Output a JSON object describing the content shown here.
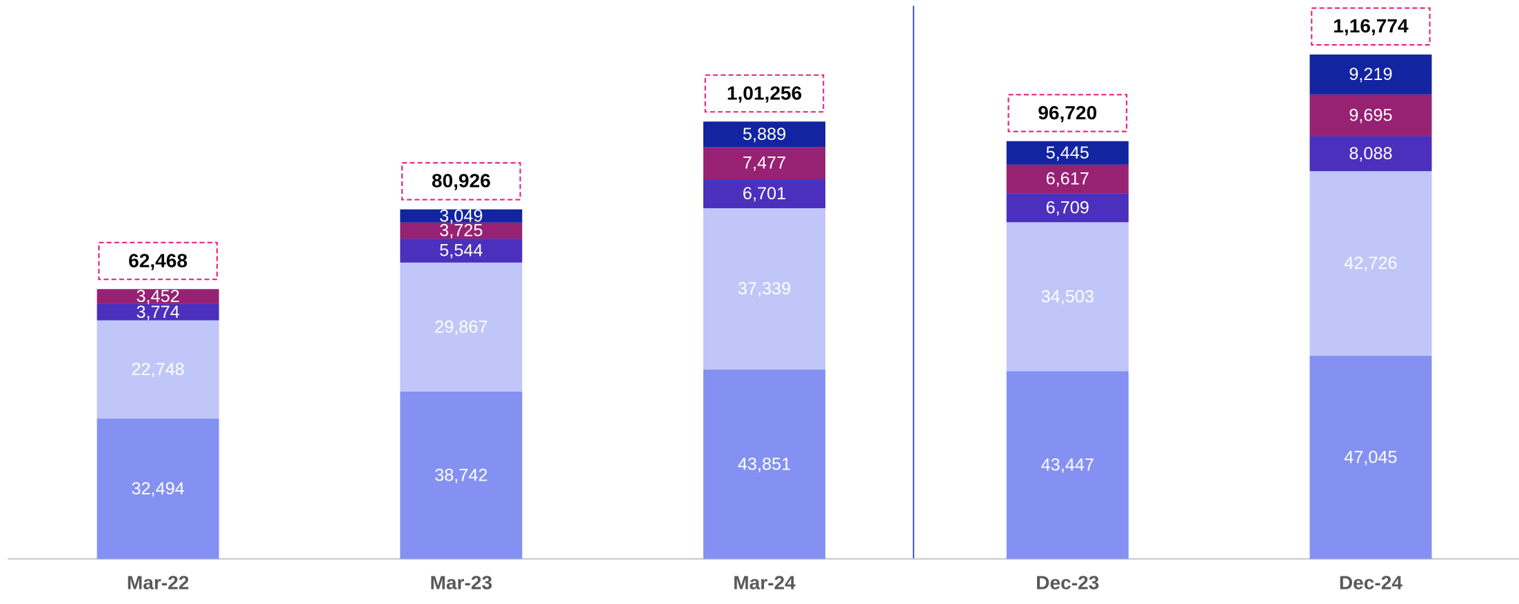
{
  "chart_data": {
    "type": "stacked_bar",
    "categories": [
      "Mar-22",
      "Mar-23",
      "Mar-24",
      "Dec-23",
      "Dec-24"
    ],
    "series": [
      {
        "color": "#8491f2",
        "values": [
          32494,
          38742,
          43851,
          43447,
          47045
        ],
        "value_labels": [
          "32,494",
          "38,742",
          "43,851",
          "43,447",
          "47,045"
        ]
      },
      {
        "color": "#c0c6f8",
        "values": [
          22748,
          29867,
          37339,
          34503,
          42726
        ],
        "value_labels": [
          "22,748",
          "29,867",
          "37,339",
          "34,503",
          "42,726"
        ]
      },
      {
        "color": "#4b2fbd",
        "values": [
          3774,
          5544,
          6701,
          6709,
          8088
        ],
        "value_labels": [
          "3,774",
          "5,544",
          "6,701",
          "6,709",
          "8,088"
        ]
      },
      {
        "color": "#972173",
        "values": [
          3452,
          3725,
          7477,
          6617,
          9695
        ],
        "value_labels": [
          "3,452",
          "3,725",
          "7,477",
          "6,617",
          "9,695"
        ]
      },
      {
        "color": "#1224a0",
        "values": [
          null,
          3049,
          5889,
          5445,
          9219
        ],
        "value_labels": [
          null,
          "3,049",
          "5,889",
          "5,445",
          "9,219"
        ]
      }
    ],
    "totals": [
      62468,
      80926,
      101256,
      96720,
      116774
    ],
    "total_labels": [
      "62,468",
      "80,926",
      "1,01,256",
      "96,720",
      "1,16,774"
    ],
    "ylim": [
      0,
      129400
    ]
  }
}
